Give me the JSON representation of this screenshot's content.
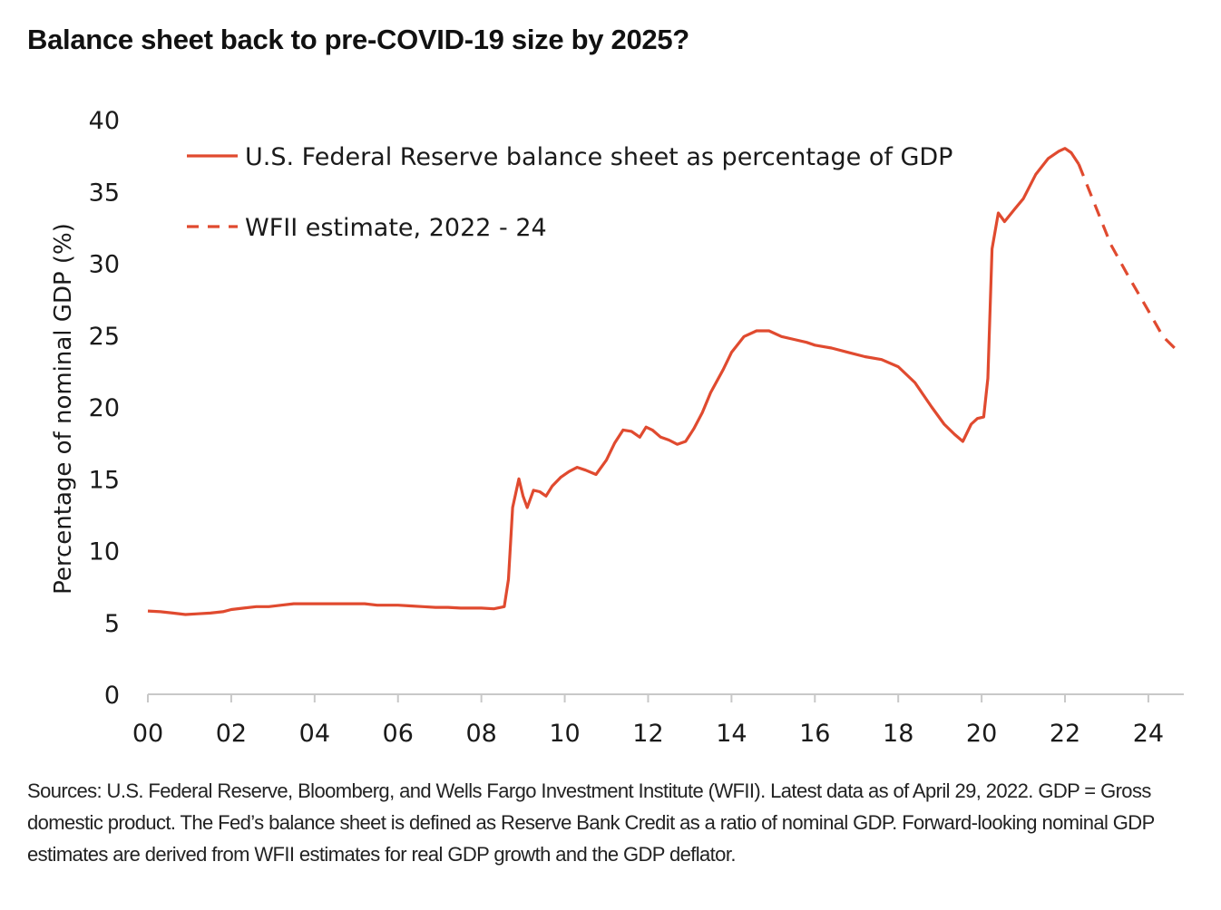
{
  "title": "Balance sheet back to pre-COVID-19 size by 2025?",
  "source_note": "Sources: U.S. Federal Reserve, Bloomberg, and Wells Fargo Investment Institute (WFII). Latest data as of April 29, 2022. GDP = Gross domestic product. The Fed’s balance sheet is defined as Reserve Bank Credit as a ratio of nominal GDP. Forward-looking nominal GDP estimates are derived from WFII estimates for real GDP growth and the GDP deflator.",
  "colors": {
    "series": "#e04a2f",
    "axis": "#c8c8c8",
    "text": "#1a1a1a"
  },
  "chart_data": {
    "type": "line",
    "title": "Balance sheet back to pre-COVID-19 size by 2025?",
    "xlabel": "",
    "ylabel": "Percentage of nominal GDP (%)",
    "xlim": [
      2000,
      2024.85
    ],
    "ylim": [
      0,
      40
    ],
    "x_ticks": [
      2000,
      2002,
      2004,
      2006,
      2008,
      2010,
      2012,
      2014,
      2016,
      2018,
      2020,
      2022,
      2024
    ],
    "x_tick_labels": [
      "00",
      "02",
      "04",
      "06",
      "08",
      "10",
      "12",
      "14",
      "16",
      "18",
      "20",
      "22",
      "24"
    ],
    "y_ticks": [
      0,
      5,
      10,
      15,
      20,
      25,
      30,
      35,
      40
    ],
    "y_tick_labels": [
      "0",
      "5",
      "10",
      "15",
      "20",
      "25",
      "30",
      "35",
      "40"
    ],
    "grid": false,
    "legend_position": "top-left",
    "series": [
      {
        "name": "U.S. Federal Reserve balance sheet as percentage of GDP",
        "style": "solid",
        "points": [
          [
            2000.0,
            5.8
          ],
          [
            2000.3,
            5.75
          ],
          [
            2000.6,
            5.65
          ],
          [
            2000.9,
            5.55
          ],
          [
            2001.2,
            5.6
          ],
          [
            2001.5,
            5.65
          ],
          [
            2001.8,
            5.75
          ],
          [
            2002.0,
            5.9
          ],
          [
            2002.3,
            6.0
          ],
          [
            2002.6,
            6.1
          ],
          [
            2002.9,
            6.1
          ],
          [
            2003.2,
            6.2
          ],
          [
            2003.5,
            6.3
          ],
          [
            2003.8,
            6.3
          ],
          [
            2004.0,
            6.3
          ],
          [
            2004.3,
            6.3
          ],
          [
            2004.6,
            6.3
          ],
          [
            2004.9,
            6.3
          ],
          [
            2005.2,
            6.3
          ],
          [
            2005.5,
            6.2
          ],
          [
            2005.8,
            6.2
          ],
          [
            2006.0,
            6.2
          ],
          [
            2006.3,
            6.15
          ],
          [
            2006.6,
            6.1
          ],
          [
            2006.9,
            6.05
          ],
          [
            2007.2,
            6.05
          ],
          [
            2007.5,
            6.0
          ],
          [
            2007.8,
            6.0
          ],
          [
            2008.0,
            6.0
          ],
          [
            2008.3,
            5.95
          ],
          [
            2008.55,
            6.1
          ],
          [
            2008.65,
            8.0
          ],
          [
            2008.75,
            13.0
          ],
          [
            2008.9,
            15.0
          ],
          [
            2009.0,
            13.8
          ],
          [
            2009.1,
            13.0
          ],
          [
            2009.25,
            14.2
          ],
          [
            2009.4,
            14.1
          ],
          [
            2009.55,
            13.8
          ],
          [
            2009.7,
            14.5
          ],
          [
            2009.9,
            15.1
          ],
          [
            2010.1,
            15.5
          ],
          [
            2010.3,
            15.8
          ],
          [
            2010.5,
            15.6
          ],
          [
            2010.75,
            15.3
          ],
          [
            2011.0,
            16.3
          ],
          [
            2011.2,
            17.5
          ],
          [
            2011.4,
            18.4
          ],
          [
            2011.6,
            18.3
          ],
          [
            2011.8,
            17.9
          ],
          [
            2011.95,
            18.6
          ],
          [
            2012.1,
            18.4
          ],
          [
            2012.3,
            17.9
          ],
          [
            2012.5,
            17.7
          ],
          [
            2012.7,
            17.4
          ],
          [
            2012.9,
            17.6
          ],
          [
            2013.1,
            18.5
          ],
          [
            2013.3,
            19.6
          ],
          [
            2013.5,
            21.0
          ],
          [
            2013.8,
            22.6
          ],
          [
            2014.0,
            23.8
          ],
          [
            2014.3,
            24.9
          ],
          [
            2014.6,
            25.3
          ],
          [
            2014.9,
            25.3
          ],
          [
            2015.2,
            24.9
          ],
          [
            2015.5,
            24.7
          ],
          [
            2015.8,
            24.5
          ],
          [
            2016.0,
            24.3
          ],
          [
            2016.4,
            24.1
          ],
          [
            2016.8,
            23.8
          ],
          [
            2017.2,
            23.5
          ],
          [
            2017.6,
            23.3
          ],
          [
            2018.0,
            22.8
          ],
          [
            2018.4,
            21.7
          ],
          [
            2018.8,
            20.0
          ],
          [
            2019.1,
            18.8
          ],
          [
            2019.35,
            18.1
          ],
          [
            2019.55,
            17.6
          ],
          [
            2019.75,
            18.8
          ],
          [
            2019.9,
            19.2
          ],
          [
            2020.05,
            19.3
          ],
          [
            2020.15,
            22.0
          ],
          [
            2020.25,
            31.0
          ],
          [
            2020.4,
            33.5
          ],
          [
            2020.55,
            32.9
          ],
          [
            2020.8,
            33.8
          ],
          [
            2021.0,
            34.5
          ],
          [
            2021.3,
            36.2
          ],
          [
            2021.6,
            37.3
          ],
          [
            2021.85,
            37.8
          ],
          [
            2022.0,
            38.0
          ],
          [
            2022.15,
            37.7
          ],
          [
            2022.33,
            36.9
          ]
        ]
      },
      {
        "name": "WFII estimate, 2022 - 24",
        "style": "dashed",
        "points": [
          [
            2022.33,
            36.9
          ],
          [
            2022.7,
            34.2
          ],
          [
            2023.1,
            31.3
          ],
          [
            2023.5,
            29.2
          ],
          [
            2024.0,
            26.7
          ],
          [
            2024.35,
            24.9
          ],
          [
            2024.7,
            23.9
          ]
        ]
      }
    ]
  }
}
